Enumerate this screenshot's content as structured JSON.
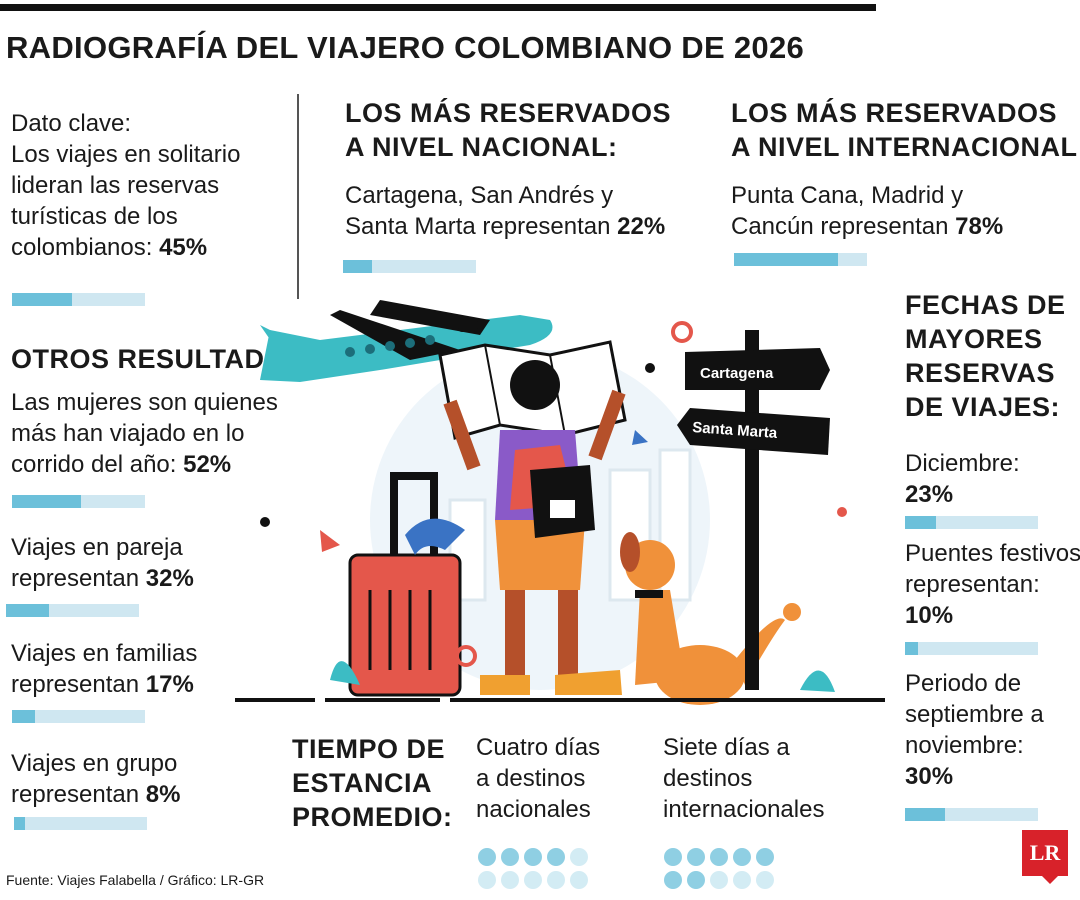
{
  "title": "RADIOGRAFÍA DEL VIAJERO COLOMBIANO DE 2026",
  "key_fact": {
    "lines": [
      "Dato clave:",
      "Los viajes en solitario",
      "lideran las reservas",
      "turísticas de los"
    ],
    "last_text": "colombianos: ",
    "value": "45%",
    "fraction": 0.45
  },
  "otros": {
    "heading": "OTROS RESULTADOS:",
    "items": [
      {
        "lines": [
          "Las mujeres son quienes",
          "más han viajado en lo"
        ],
        "last_text": "corrido del año: ",
        "value": "52%",
        "fraction": 0.52
      },
      {
        "lines": [
          "Viajes en pareja"
        ],
        "last_text": "representan ",
        "value": "32%",
        "fraction": 0.32
      },
      {
        "lines": [
          "Viajes en familias"
        ],
        "last_text": "representan ",
        "value": "17%",
        "fraction": 0.17
      },
      {
        "lines": [
          "Viajes en grupo"
        ],
        "last_text": "representan ",
        "value": "8%",
        "fraction": 0.08
      }
    ]
  },
  "nacional": {
    "heading": [
      "LOS MÁS RESERVADOS",
      "A NIVEL NACIONAL:"
    ],
    "lines": [
      "Cartagena, San Andrés y"
    ],
    "last_text": "Santa Marta representan ",
    "value": "22%",
    "fraction": 0.22
  },
  "internacional": {
    "heading": [
      "LOS MÁS RESERVADOS",
      "A NIVEL INTERNACIONAL:"
    ],
    "lines": [
      "Punta Cana, Madrid y"
    ],
    "last_text": "Cancún representan ",
    "value": "78%",
    "fraction": 0.78
  },
  "fechas": {
    "heading": [
      "FECHAS DE",
      "MAYORES",
      "RESERVAS",
      "DE VIAJES:"
    ],
    "items": [
      {
        "lines": [
          "Diciembre:"
        ],
        "value": "23%",
        "fraction": 0.23
      },
      {
        "lines": [
          "Puentes festivos",
          "representan:"
        ],
        "value": "10%",
        "fraction": 0.1
      },
      {
        "lines": [
          "Periodo de",
          "septiembre a",
          "noviembre:"
        ],
        "value": "30%",
        "fraction": 0.3
      }
    ]
  },
  "estancia": {
    "heading": [
      "TIEMPO DE",
      "ESTANCIA",
      "PROMEDIO:"
    ],
    "nacional": {
      "lines": [
        "Cuatro días",
        "a destinos",
        "nacionales"
      ],
      "days": 4,
      "total": 10
    },
    "internacional": {
      "lines": [
        "Siete días a",
        "destinos",
        "internacionales"
      ],
      "days": 7,
      "total": 10
    }
  },
  "signs": {
    "sign1": "Cartagena",
    "sign2": "Santa Marta"
  },
  "source": "Fuente: Viajes Falabella / Gráfico: LR-GR",
  "logo": "LR",
  "colors": {
    "bar_fill": "#6cc0da",
    "bar_track": "#cfe7f1",
    "plane": "#3cbcc4",
    "luggage": "#e4574b",
    "dog": "#f0913a",
    "logo_red": "#d8222a"
  }
}
